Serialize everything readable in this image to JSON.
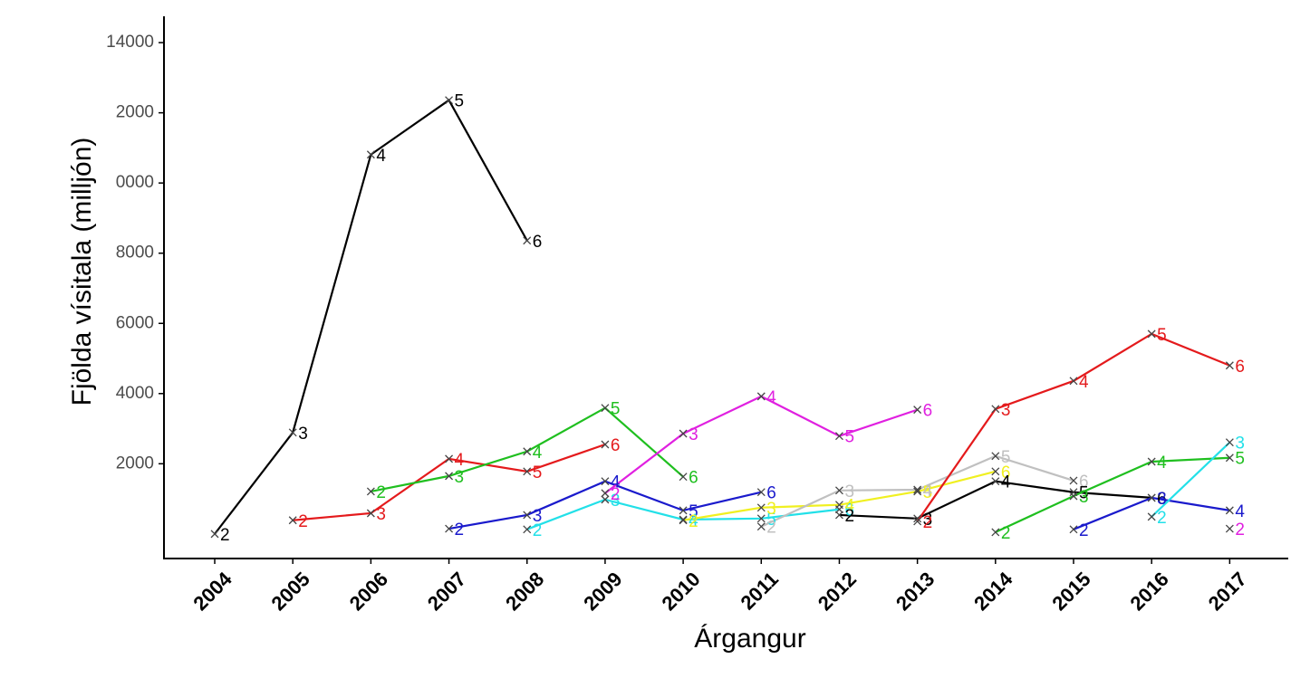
{
  "chart_data": {
    "type": "line",
    "x_label": "Árgangur",
    "y_label": "Fjölda vísitala (milljón)",
    "x": [
      2004,
      2005,
      2006,
      2007,
      2008,
      2009,
      2010,
      2011,
      2012,
      2013,
      2014,
      2015,
      2016,
      2017
    ],
    "xlim": [
      2003.35,
      2017.75
    ],
    "xticks": [
      2004,
      2005,
      2006,
      2007,
      2008,
      2009,
      2010,
      2011,
      2012,
      2013,
      2014,
      2015,
      2016,
      2017
    ],
    "ylim": [
      -700,
      14750
    ],
    "yticks": [
      2000,
      4000,
      6000,
      8000,
      {
        "value": 10000,
        "label": "0000"
      },
      {
        "value": 12000,
        "label": "2000"
      },
      14000
    ],
    "grid": false,
    "series": [
      {
        "color": "#000000",
        "values": [
          0,
          2890,
          10810,
          12360,
          8360,
          null,
          null,
          null,
          null,
          null,
          null,
          null,
          null,
          null
        ],
        "point_labels": [
          "2",
          "3",
          "4",
          "5",
          "6",
          null,
          null,
          null,
          null,
          null,
          null,
          null,
          null,
          null
        ]
      },
      {
        "color": "#e41a1c",
        "values": [
          null,
          390,
          590,
          2140,
          1780,
          2550,
          null,
          null,
          null,
          null,
          null,
          null,
          null,
          null
        ],
        "point_labels": [
          null,
          "2",
          "3",
          "4",
          "5",
          "6",
          null,
          null,
          null,
          null,
          null,
          null,
          null,
          null
        ]
      },
      {
        "color": "#1fbf1f",
        "values": [
          null,
          null,
          1210,
          1650,
          2350,
          3590,
          1630,
          null,
          null,
          null,
          null,
          null,
          null,
          null
        ],
        "point_labels": [
          null,
          null,
          "2",
          "3",
          "4",
          "5",
          "6",
          null,
          null,
          null,
          null,
          null,
          null,
          null
        ]
      },
      {
        "color": "#1a1acc",
        "values": [
          null,
          null,
          null,
          150,
          540,
          1500,
          670,
          1190,
          null,
          null,
          null,
          null,
          null,
          null
        ],
        "point_labels": [
          null,
          null,
          null,
          "2",
          "3",
          "4",
          "5",
          "6",
          null,
          null,
          null,
          null,
          null,
          null
        ]
      },
      {
        "color": "#22e0e8",
        "values": [
          null,
          null,
          null,
          null,
          130,
          980,
          410,
          440,
          700,
          null,
          null,
          null,
          null,
          null
        ],
        "point_labels": [
          null,
          null,
          null,
          null,
          "2",
          "3",
          "4",
          "5",
          "6",
          null,
          null,
          null,
          null,
          null
        ]
      },
      {
        "color": "#e020e0",
        "values": [
          null,
          null,
          null,
          null,
          null,
          1160,
          2860,
          3920,
          2790,
          3540,
          null,
          null,
          null,
          null
        ],
        "point_labels": [
          null,
          null,
          null,
          null,
          null,
          "2",
          "3",
          "4",
          "5",
          "6",
          null,
          null,
          null,
          null
        ]
      },
      {
        "color": "#f0f020",
        "values": [
          null,
          null,
          null,
          null,
          null,
          null,
          390,
          750,
          830,
          1210,
          1780,
          null,
          null,
          null
        ],
        "point_labels": [
          null,
          null,
          null,
          null,
          null,
          null,
          "2",
          "3",
          "4",
          "5",
          "6",
          null,
          null,
          null
        ]
      },
      {
        "color": "#c0c0c0",
        "values": [
          null,
          null,
          null,
          null,
          null,
          null,
          null,
          210,
          1240,
          1260,
          2220,
          1520,
          null,
          null
        ],
        "point_labels": [
          null,
          null,
          null,
          null,
          null,
          null,
          null,
          "2",
          "3",
          "4",
          "5",
          "6",
          null,
          null
        ]
      },
      {
        "color": "#000000",
        "values": [
          null,
          null,
          null,
          null,
          null,
          null,
          null,
          null,
          540,
          440,
          1500,
          1190,
          1030,
          null
        ],
        "point_labels": [
          null,
          null,
          null,
          null,
          null,
          null,
          null,
          null,
          "2",
          "3",
          "4",
          "5",
          "6",
          null
        ]
      },
      {
        "color": "#e41a1c",
        "values": [
          null,
          null,
          null,
          null,
          null,
          null,
          null,
          null,
          null,
          360,
          3560,
          4360,
          5700,
          4800
        ],
        "point_labels": [
          null,
          null,
          null,
          null,
          null,
          null,
          null,
          null,
          null,
          "2",
          "3",
          "4",
          "5",
          "6"
        ]
      },
      {
        "color": "#1fbf1f",
        "values": [
          null,
          null,
          null,
          null,
          null,
          null,
          null,
          null,
          null,
          null,
          50,
          1080,
          2060,
          2170
        ],
        "point_labels": [
          null,
          null,
          null,
          null,
          null,
          null,
          null,
          null,
          null,
          null,
          "2",
          "3",
          "4",
          "5"
        ]
      },
      {
        "color": "#1a1acc",
        "values": [
          null,
          null,
          null,
          null,
          null,
          null,
          null,
          null,
          null,
          null,
          null,
          130,
          1030,
          670
        ],
        "point_labels": [
          null,
          null,
          null,
          null,
          null,
          null,
          null,
          null,
          null,
          null,
          null,
          "2",
          "3",
          "4"
        ]
      },
      {
        "color": "#22e0e8",
        "values": [
          null,
          null,
          null,
          null,
          null,
          null,
          null,
          null,
          null,
          null,
          null,
          null,
          490,
          2610
        ],
        "point_labels": [
          null,
          null,
          null,
          null,
          null,
          null,
          null,
          null,
          null,
          null,
          null,
          null,
          "2",
          "3"
        ]
      },
      {
        "color": "#e020e0",
        "values": [
          null,
          null,
          null,
          null,
          null,
          null,
          null,
          null,
          null,
          null,
          null,
          null,
          null,
          150
        ],
        "point_labels": [
          null,
          null,
          null,
          null,
          null,
          null,
          null,
          null,
          null,
          null,
          null,
          null,
          null,
          "2"
        ]
      }
    ]
  }
}
